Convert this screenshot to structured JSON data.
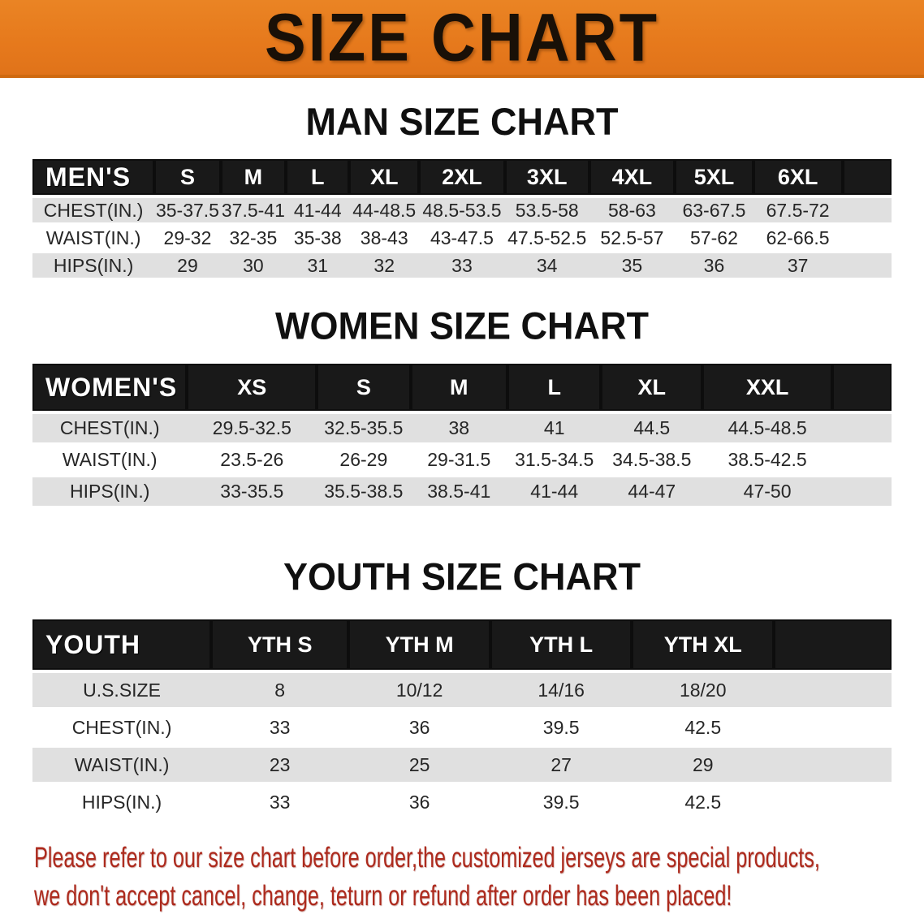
{
  "banner": {
    "title": "SIZE CHART"
  },
  "colors": {
    "banner_bg": "#e6791c",
    "header_bar_bg": "#191919",
    "row_alt_bg": "#e0e0e0",
    "footer_text": "#ad2a1d"
  },
  "sections": [
    {
      "heading": "MAN SIZE CHART",
      "group_label": "MEN'S",
      "sizes": [
        "S",
        "M",
        "L",
        "XL",
        "2XL",
        "3XL",
        "4XL",
        "5XL",
        "6XL"
      ],
      "rows": [
        {
          "label": "CHEST(IN.)",
          "values": [
            "35-37.5",
            "37.5-41",
            "41-44",
            "44-48.5",
            "48.5-53.5",
            "53.5-58",
            "58-63",
            "63-67.5",
            "67.5-72"
          ]
        },
        {
          "label": "WAIST(IN.)",
          "values": [
            "29-32",
            "32-35",
            "35-38",
            "38-43",
            "43-47.5",
            "47.5-52.5",
            "52.5-57",
            "57-62",
            "62-66.5"
          ]
        },
        {
          "label": "HIPS(IN.)",
          "values": [
            "29",
            "30",
            "31",
            "32",
            "33",
            "34",
            "35",
            "36",
            "37"
          ]
        }
      ]
    },
    {
      "heading": "WOMEN SIZE CHART",
      "group_label": "WOMEN'S",
      "sizes": [
        "XS",
        "S",
        "M",
        "L",
        "XL",
        "XXL"
      ],
      "rows": [
        {
          "label": "CHEST(IN.)",
          "values": [
            "29.5-32.5",
            "32.5-35.5",
            "38",
            "41",
            "44.5",
            "44.5-48.5"
          ]
        },
        {
          "label": "WAIST(IN.)",
          "values": [
            "23.5-26",
            "26-29",
            "29-31.5",
            "31.5-34.5",
            "34.5-38.5",
            "38.5-42.5"
          ]
        },
        {
          "label": "HIPS(IN.)",
          "values": [
            "33-35.5",
            "35.5-38.5",
            "38.5-41",
            "41-44",
            "44-47",
            "47-50"
          ]
        }
      ]
    },
    {
      "heading": "YOUTH SIZE CHART",
      "group_label": "YOUTH",
      "sizes": [
        "YTH S",
        "YTH M",
        "YTH L",
        "YTH XL"
      ],
      "rows": [
        {
          "label": "U.S.SIZE",
          "values": [
            "8",
            "10/12",
            "14/16",
            "18/20"
          ]
        },
        {
          "label": "CHEST(IN.)",
          "values": [
            "33",
            "36",
            "39.5",
            "42.5"
          ]
        },
        {
          "label": "WAIST(IN.)",
          "values": [
            "23",
            "25",
            "27",
            "29"
          ]
        },
        {
          "label": "HIPS(IN.)",
          "values": [
            "33",
            "36",
            "39.5",
            "42.5"
          ]
        }
      ]
    }
  ],
  "footer": {
    "line1": "Please refer to our size chart before order,the customized jerseys are special products,",
    "line2": "we don't accept cancel, change, teturn or refund after order has been placed!"
  }
}
